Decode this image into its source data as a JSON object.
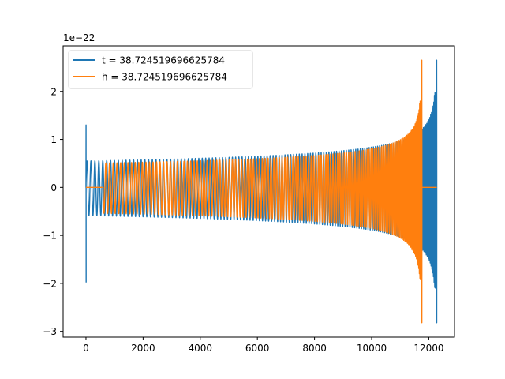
{
  "chart_data": {
    "type": "line",
    "title": "",
    "xlabel": "",
    "ylabel": "",
    "y_scale_offset": "1e−22",
    "y_multiplier": 1e-22,
    "xlim": [
      -800,
      12900
    ],
    "ylim": [
      -3.12,
      2.95
    ],
    "x_ticks": [
      0,
      2000,
      4000,
      6000,
      8000,
      10000,
      12000
    ],
    "x_tick_labels": [
      "0",
      "2000",
      "4000",
      "6000",
      "8000",
      "10000",
      "12000"
    ],
    "y_ticks": [
      2,
      1,
      0,
      -1,
      -2,
      -3
    ],
    "y_tick_labels": [
      "2",
      "1",
      "0",
      "−1",
      "−2",
      "−3"
    ],
    "grid": false,
    "legend_position": "top-left",
    "series": [
      {
        "name": "t = 38.724519696625784",
        "color": "#1f77b4",
        "waveform": {
          "start": 0,
          "end": 12280,
          "merger_at": 12280,
          "base_amplitude": 0.55,
          "peak_max": 2.65,
          "peak_min": -2.82,
          "initial_transient": {
            "at": 0,
            "max": 1.3,
            "min": -1.98
          }
        }
      },
      {
        "name": "h = 38.724519696625784",
        "color": "#ff7f0e",
        "waveform": {
          "start": 0,
          "end": 12280,
          "merger_at": 11760,
          "base_amplitude": 0.5,
          "peak_max": 2.65,
          "peak_min": -2.82,
          "flat_segment": [
            0,
            600
          ]
        }
      }
    ]
  },
  "legend": {
    "items": [
      {
        "label": "t = 38.724519696625784",
        "color": "#1f77b4"
      },
      {
        "label": "h = 38.724519696625784",
        "color": "#ff7f0e"
      }
    ]
  }
}
